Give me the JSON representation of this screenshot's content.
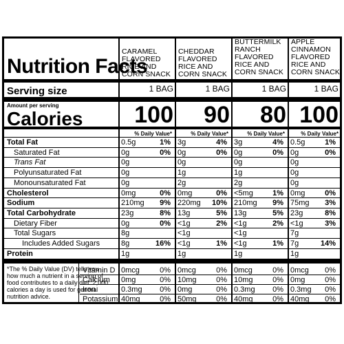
{
  "title": "Nutrition Facts",
  "serving_size_label": "Serving size",
  "amount_per_serving": "Amount per serving",
  "calories_label": "Calories",
  "dv_header": "% Daily Value*",
  "products": [
    {
      "name": "CARAMEL FLAVORED RICE AND CORN SNACK",
      "serving": "1 BAG",
      "calories": "100"
    },
    {
      "name": "CHEDDAR FLAVORED RICE AND CORN SNACK",
      "serving": "1 BAG",
      "calories": "90"
    },
    {
      "name": "BUTTERMILK RANCH FLAVORED RICE AND CORN SNACK",
      "serving": "1 BAG",
      "calories": "80"
    },
    {
      "name": "APPLE CINNAMON FLAVORED RICE AND CORN SNACK",
      "serving": "1 BAG",
      "calories": "100"
    }
  ],
  "nutrients": [
    {
      "label": "Total Fat",
      "bold": true,
      "values": [
        [
          "0.5g",
          "1%"
        ],
        [
          "3g",
          "4%"
        ],
        [
          "3g",
          "4%"
        ],
        [
          "0.5g",
          "1%"
        ]
      ]
    },
    {
      "label": "Saturated Fat",
      "values": [
        [
          "0g",
          "0%"
        ],
        [
          "0g",
          "0%"
        ],
        [
          "0g",
          "0%"
        ],
        [
          "0g",
          "0%"
        ]
      ]
    },
    {
      "label": "Trans Fat",
      "values": [
        [
          "0g",
          ""
        ],
        [
          "0g",
          ""
        ],
        [
          "0g",
          ""
        ],
        [
          "0g",
          ""
        ]
      ]
    },
    {
      "label": "Polyunsaturated Fat",
      "values": [
        [
          "0g",
          ""
        ],
        [
          "1g",
          ""
        ],
        [
          "1g",
          ""
        ],
        [
          "0g",
          ""
        ]
      ]
    },
    {
      "label": "Monounsaturated Fat",
      "values": [
        [
          "0g",
          ""
        ],
        [
          "2g",
          ""
        ],
        [
          "2g",
          ""
        ],
        [
          "0g",
          ""
        ]
      ]
    },
    {
      "label": "Cholesterol",
      "bold": true,
      "values": [
        [
          "0mg",
          "0%"
        ],
        [
          "0mg",
          "0%"
        ],
        [
          "<5mg",
          "1%"
        ],
        [
          "0mg",
          "0%"
        ]
      ]
    },
    {
      "label": "Sodium",
      "bold": true,
      "values": [
        [
          "210mg",
          "9%"
        ],
        [
          "220mg",
          "10%"
        ],
        [
          "210mg",
          "9%"
        ],
        [
          "75mg",
          "3%"
        ]
      ]
    },
    {
      "label": "Total Carbohydrate",
      "bold": true,
      "values": [
        [
          "23g",
          "8%"
        ],
        [
          "13g",
          "5%"
        ],
        [
          "13g",
          "5%"
        ],
        [
          "23g",
          "8%"
        ]
      ]
    },
    {
      "label": "Dietary Fiber",
      "values": [
        [
          "0g",
          "0%"
        ],
        [
          "<1g",
          "2%"
        ],
        [
          "<1g",
          "2%"
        ],
        [
          "<1g",
          "3%"
        ]
      ]
    },
    {
      "label": "Total Sugars",
      "values": [
        [
          "8g",
          ""
        ],
        [
          "<1g",
          ""
        ],
        [
          "<1g",
          ""
        ],
        [
          "7g",
          ""
        ]
      ]
    },
    {
      "label": "Includes Added Sugars",
      "values": [
        [
          "8g",
          "16%"
        ],
        [
          "<1g",
          "1%"
        ],
        [
          "<1g",
          "1%"
        ],
        [
          "7g",
          "14%"
        ]
      ]
    },
    {
      "label": "Protein",
      "bold": true,
      "values": [
        [
          "1g",
          ""
        ],
        [
          "1g",
          ""
        ],
        [
          "1g",
          ""
        ],
        [
          "1g",
          ""
        ]
      ]
    }
  ],
  "vitamins": [
    {
      "label": "Vitamin D",
      "values": [
        [
          "0mcg",
          "0%"
        ],
        [
          "0mcg",
          "0%"
        ],
        [
          "0mcg",
          "0%"
        ],
        [
          "0mcg",
          "0%"
        ]
      ]
    },
    {
      "label": "Calcium",
      "values": [
        [
          "0mg",
          "0%"
        ],
        [
          "10mg",
          "0%"
        ],
        [
          "10mg",
          "0%"
        ],
        [
          "0mg",
          "0%"
        ]
      ]
    },
    {
      "label": "Iron",
      "values": [
        [
          "0.3mg",
          "0%"
        ],
        [
          "0mg",
          "0%"
        ],
        [
          "0.3mg",
          "0%"
        ],
        [
          "0.3mg",
          "0%"
        ]
      ]
    },
    {
      "label": "Potassium",
      "values": [
        [
          "40mg",
          "0%"
        ],
        [
          "50mg",
          "0%"
        ],
        [
          "40mg",
          "0%"
        ],
        [
          "40mg",
          "0%"
        ]
      ]
    }
  ],
  "footnote": "*The % Daily Value (DV) tells you how much a nutrient in a serving of food contributes to a daily diet. 2,000 calories a day is used for general nutrition advice."
}
